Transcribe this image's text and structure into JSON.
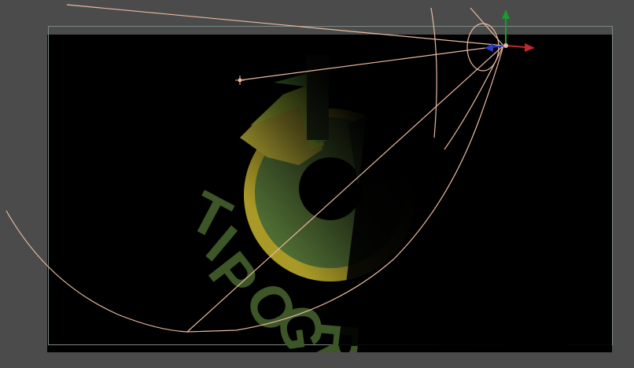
{
  "viewport": {
    "background_color": "#4b4b4b",
    "canvas_color": "#000000",
    "frame_color": "#7a8a86"
  },
  "logo": {
    "text": "TIPOGR",
    "text_color": "#3f5a28",
    "ring_colors": [
      "#b5a52c",
      "#4c6a31",
      "#6ab640",
      "#a8c236",
      "#8a8a24"
    ]
  },
  "camera": {
    "wire_color": "#e9b9a0",
    "target_icon": "crosshair-icon",
    "axis_x_color": "#c1272d",
    "axis_y_color": "#1a9c2b",
    "axis_z_color": "#2a3ec4"
  }
}
